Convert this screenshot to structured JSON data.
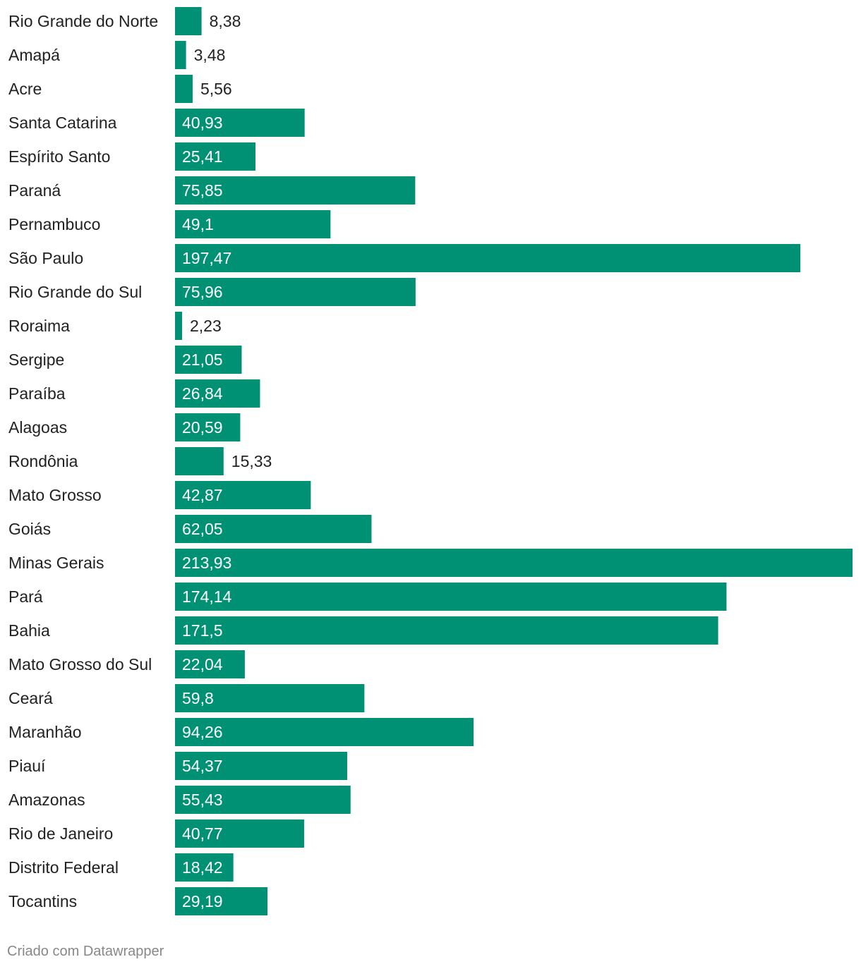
{
  "chart_data": {
    "type": "bar",
    "orientation": "horizontal",
    "categories": [
      "Rio Grande do Norte",
      "Amapá",
      "Acre",
      "Santa Catarina",
      "Espírito Santo",
      "Paraná",
      "Pernambuco",
      "São Paulo",
      "Rio Grande do Sul",
      "Roraima",
      "Sergipe",
      "Paraíba",
      "Alagoas",
      "Rondônia",
      "Mato Grosso",
      "Goiás",
      "Minas Gerais",
      "Pará",
      "Bahia",
      "Mato Grosso do Sul",
      "Ceará",
      "Maranhão",
      "Piauí",
      "Amazonas",
      "Rio de Janeiro",
      "Distrito Federal",
      "Tocantins"
    ],
    "values": [
      8.38,
      3.48,
      5.56,
      40.93,
      25.41,
      75.85,
      49.1,
      197.47,
      75.96,
      2.23,
      21.05,
      26.84,
      20.59,
      15.33,
      42.87,
      62.05,
      213.93,
      174.14,
      171.5,
      22.04,
      59.8,
      94.26,
      54.37,
      55.43,
      40.77,
      18.42,
      29.19
    ],
    "value_labels": [
      "8,38",
      "3,48",
      "5,56",
      "40,93",
      "25,41",
      "75,85",
      "49,1",
      "197,47",
      "75,96",
      "2,23",
      "21,05",
      "26,84",
      "20,59",
      "15,33",
      "42,87",
      "62,05",
      "213,93",
      "174,14",
      "171,5",
      "22,04",
      "59,8",
      "94,26",
      "54,37",
      "55,43",
      "40,77",
      "18,42",
      "29,19"
    ],
    "xlim": [
      0,
      213.93
    ],
    "bar_color": "#009175",
    "label_inside_color": "#ffffff",
    "label_outside_color": "#222222",
    "grid": false,
    "legend": "none"
  },
  "footer": {
    "credit": "Criado com Datawrapper"
  }
}
